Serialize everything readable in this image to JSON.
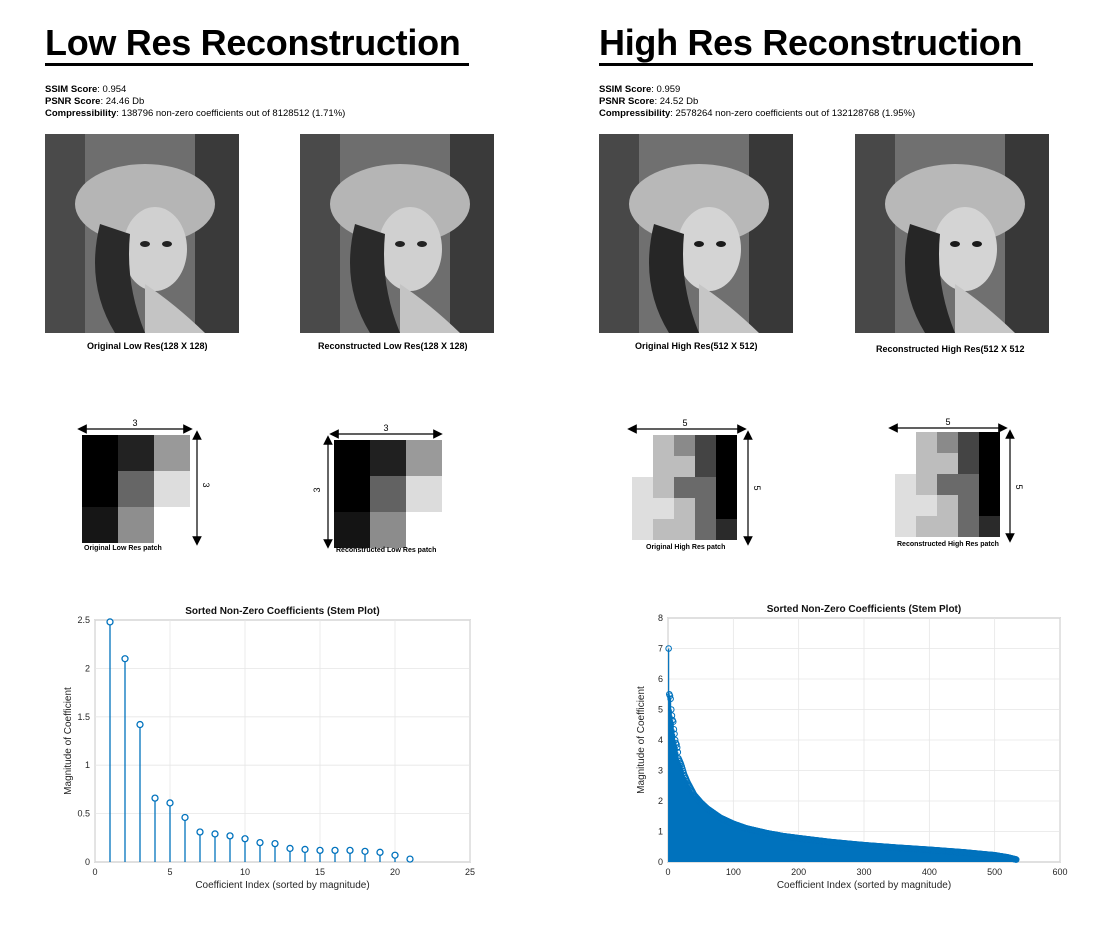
{
  "low": {
    "title": "Low Res Reconstruction",
    "ssim_label": "SSIM Score",
    "ssim_value": ": 0.954",
    "psnr_label": "PSNR Score",
    "psnr_value": ": 24.46 Db",
    "comp_label": "Compressibility",
    "comp_value": ": 138796 non-zero coefficients out of 8128512 (1.71%)",
    "original_caption": "Original Low Res(128 X 128)",
    "reconstructed_caption": "Reconstructed Low Res(128 X 128)",
    "patch_size_label": "3",
    "original_patch_caption": "Original Low Res patch",
    "reconstructed_patch_caption": "Reconstructed Low Res patch",
    "original_patch": [
      [
        "#000000",
        "#222222",
        "#999999"
      ],
      [
        "#000000",
        "#666666",
        "#dddddd"
      ],
      [
        "#161616",
        "#8e8e8e",
        "#ffffff"
      ]
    ],
    "reconstructed_patch": [
      [
        "#000000",
        "#202020",
        "#9a9a9a"
      ],
      [
        "#000000",
        "#626262",
        "#dcdcdc"
      ],
      [
        "#141414",
        "#8c8c8c",
        "#ffffff"
      ]
    ]
  },
  "high": {
    "title": "High Res Reconstruction",
    "ssim_label": "SSIM Score",
    "ssim_value": ": 0.959",
    "psnr_label": "PSNR Score",
    "psnr_value": ": 24.52 Db",
    "comp_label": "Compressibility",
    "comp_value": ": 2578264 non-zero coefficients out of 132128768 (1.95%)",
    "original_caption": "Original High Res(512 X 512)",
    "reconstructed_caption": "Reconstructed High Res(512 X 512",
    "patch_size_label": "5",
    "original_patch_caption": "Original High Res patch",
    "reconstructed_patch_caption": "Reconstructed High Res patch",
    "original_patch": [
      [
        "#ffffff",
        "#bdbdbd",
        "#8a8a8a",
        "#444444",
        "#000000"
      ],
      [
        "#ffffff",
        "#bdbdbd",
        "#bdbdbd",
        "#444444",
        "#000000"
      ],
      [
        "#dedede",
        "#bdbdbd",
        "#6a6a6a",
        "#6a6a6a",
        "#000000"
      ],
      [
        "#dedede",
        "#dedede",
        "#bdbdbd",
        "#6a6a6a",
        "#000000"
      ],
      [
        "#dedede",
        "#bdbdbd",
        "#bdbdbd",
        "#6a6a6a",
        "#2a2a2a"
      ]
    ],
    "reconstructed_patch": [
      [
        "#ffffff",
        "#bdbdbd",
        "#8a8a8a",
        "#444444",
        "#000000"
      ],
      [
        "#ffffff",
        "#bdbdbd",
        "#bdbdbd",
        "#444444",
        "#000000"
      ],
      [
        "#dedede",
        "#bdbdbd",
        "#6a6a6a",
        "#6a6a6a",
        "#000000"
      ],
      [
        "#dedede",
        "#dedede",
        "#bdbdbd",
        "#6a6a6a",
        "#000000"
      ],
      [
        "#dedede",
        "#bdbdbd",
        "#bdbdbd",
        "#6a6a6a",
        "#2a2a2a"
      ]
    ]
  },
  "chart_data": [
    {
      "type": "stem",
      "title": "Sorted Non-Zero Coefficients (Stem Plot)",
      "xlabel": "Coefficient Index (sorted by magnitude)",
      "ylabel": "Magnitude of Coefficient",
      "xlim": [
        0,
        25
      ],
      "ylim": [
        0,
        2.5
      ],
      "xticks": [
        0,
        5,
        10,
        15,
        20,
        25
      ],
      "yticks": [
        0,
        0.5,
        1,
        1.5,
        2,
        2.5
      ],
      "ytick_labels": [
        "0",
        "0.5",
        "1",
        "1.5",
        "2",
        "2.5"
      ],
      "grid": true,
      "color": "#0072bd",
      "x": [
        1,
        2,
        3,
        4,
        5,
        6,
        7,
        8,
        9,
        10,
        11,
        12,
        13,
        14,
        15,
        16,
        17,
        18,
        19,
        20,
        21
      ],
      "values": [
        2.48,
        2.1,
        1.42,
        0.66,
        0.61,
        0.46,
        0.31,
        0.29,
        0.27,
        0.24,
        0.2,
        0.19,
        0.14,
        0.13,
        0.12,
        0.12,
        0.12,
        0.11,
        0.1,
        0.07,
        0.03
      ]
    },
    {
      "type": "stem",
      "title": "Sorted Non-Zero Coefficients (Stem Plot)",
      "xlabel": "Coefficient Index (sorted by magnitude)",
      "ylabel": "Magnitude of Coefficient",
      "xlim": [
        0,
        600
      ],
      "ylim": [
        0,
        8
      ],
      "xticks": [
        0,
        100,
        200,
        300,
        400,
        500,
        600
      ],
      "yticks": [
        0,
        1,
        2,
        3,
        4,
        5,
        6,
        7,
        8
      ],
      "ytick_labels": [
        "0",
        "1",
        "2",
        "3",
        "4",
        "5",
        "6",
        "7",
        "8"
      ],
      "grid": true,
      "color": "#0072bd",
      "n_points": 533,
      "x": [
        1,
        2,
        3,
        4,
        5,
        6,
        7,
        8,
        9,
        10,
        11,
        12,
        13,
        14,
        15,
        16,
        18,
        20,
        25,
        30,
        40,
        50,
        60,
        70,
        80,
        100,
        120,
        150,
        175,
        200,
        250,
        300,
        350,
        400,
        450,
        500,
        520,
        533
      ],
      "values": [
        7.0,
        5.5,
        5.45,
        5.35,
        5.0,
        4.8,
        4.65,
        4.6,
        4.35,
        4.2,
        4.0,
        3.9,
        3.85,
        3.75,
        3.6,
        3.4,
        3.3,
        3.2,
        2.85,
        2.6,
        2.2,
        1.95,
        1.75,
        1.6,
        1.45,
        1.25,
        1.1,
        0.95,
        0.85,
        0.78,
        0.65,
        0.55,
        0.47,
        0.4,
        0.32,
        0.22,
        0.15,
        0.08
      ]
    }
  ]
}
